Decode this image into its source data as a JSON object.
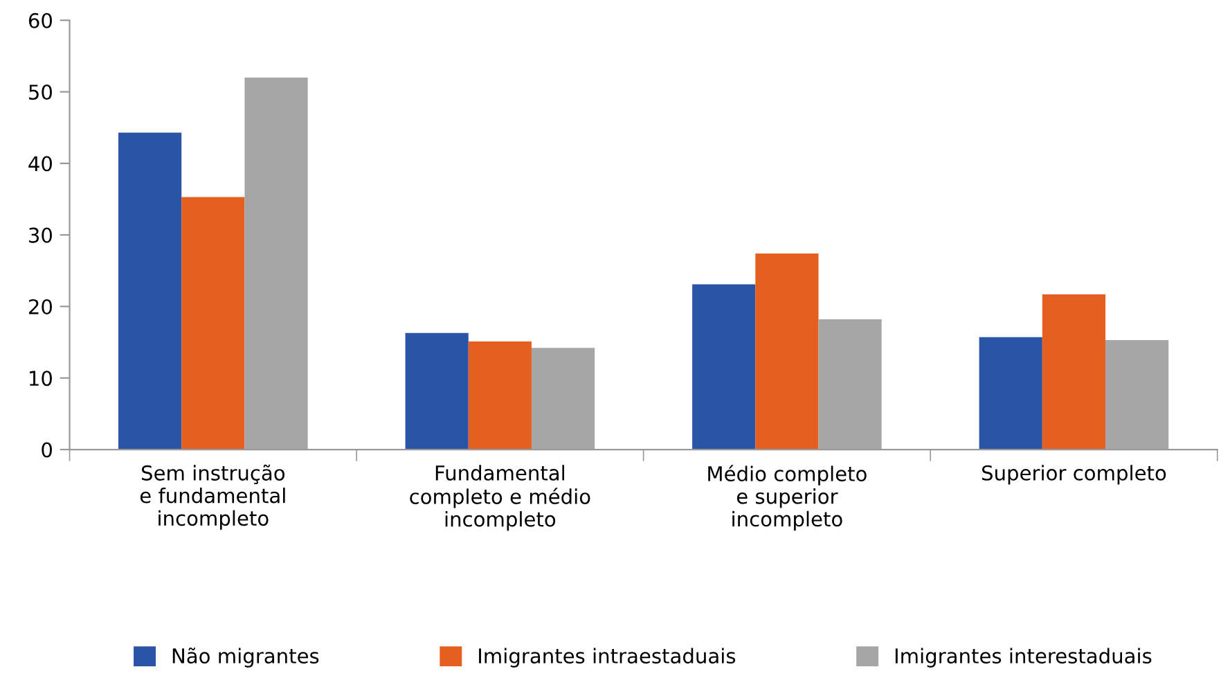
{
  "chart_data": {
    "type": "bar",
    "categories": [
      "Sem instrução\ne fundamental\nincompleto",
      "Fundamental\ncompleto e médio\nincompleto",
      "Médio completo\ne superior\nincompleto",
      "Superior completo"
    ],
    "series": [
      {
        "name": "Não migrantes",
        "color": "#2a54a6",
        "values": [
          44.3,
          16.3,
          23.1,
          15.7
        ]
      },
      {
        "name": "Imigrantes intraestaduais",
        "color": "#e56020",
        "values": [
          35.3,
          15.1,
          27.4,
          21.7
        ]
      },
      {
        "name": "Imigrantes interestaduais",
        "color": "#a6a6a6",
        "values": [
          52.0,
          14.2,
          18.2,
          15.3
        ]
      }
    ],
    "ylim": [
      0,
      60
    ],
    "yticks": [
      0,
      10,
      20,
      30,
      40,
      50,
      60
    ],
    "grid": false,
    "legend": "bottom"
  }
}
